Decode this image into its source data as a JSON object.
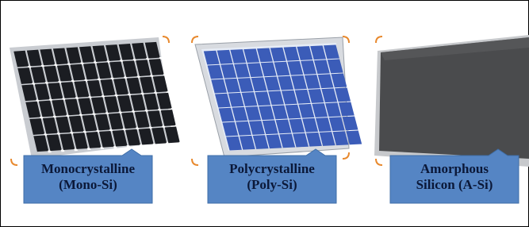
{
  "panels": [
    {
      "label": [
        "Monocrystalline",
        "(Mono-Si)"
      ]
    },
    {
      "label": [
        "Polycrystalline",
        "(Poly-Si)"
      ]
    },
    {
      "label": [
        "Amorphous",
        "Silicon (A-Si)"
      ]
    }
  ]
}
